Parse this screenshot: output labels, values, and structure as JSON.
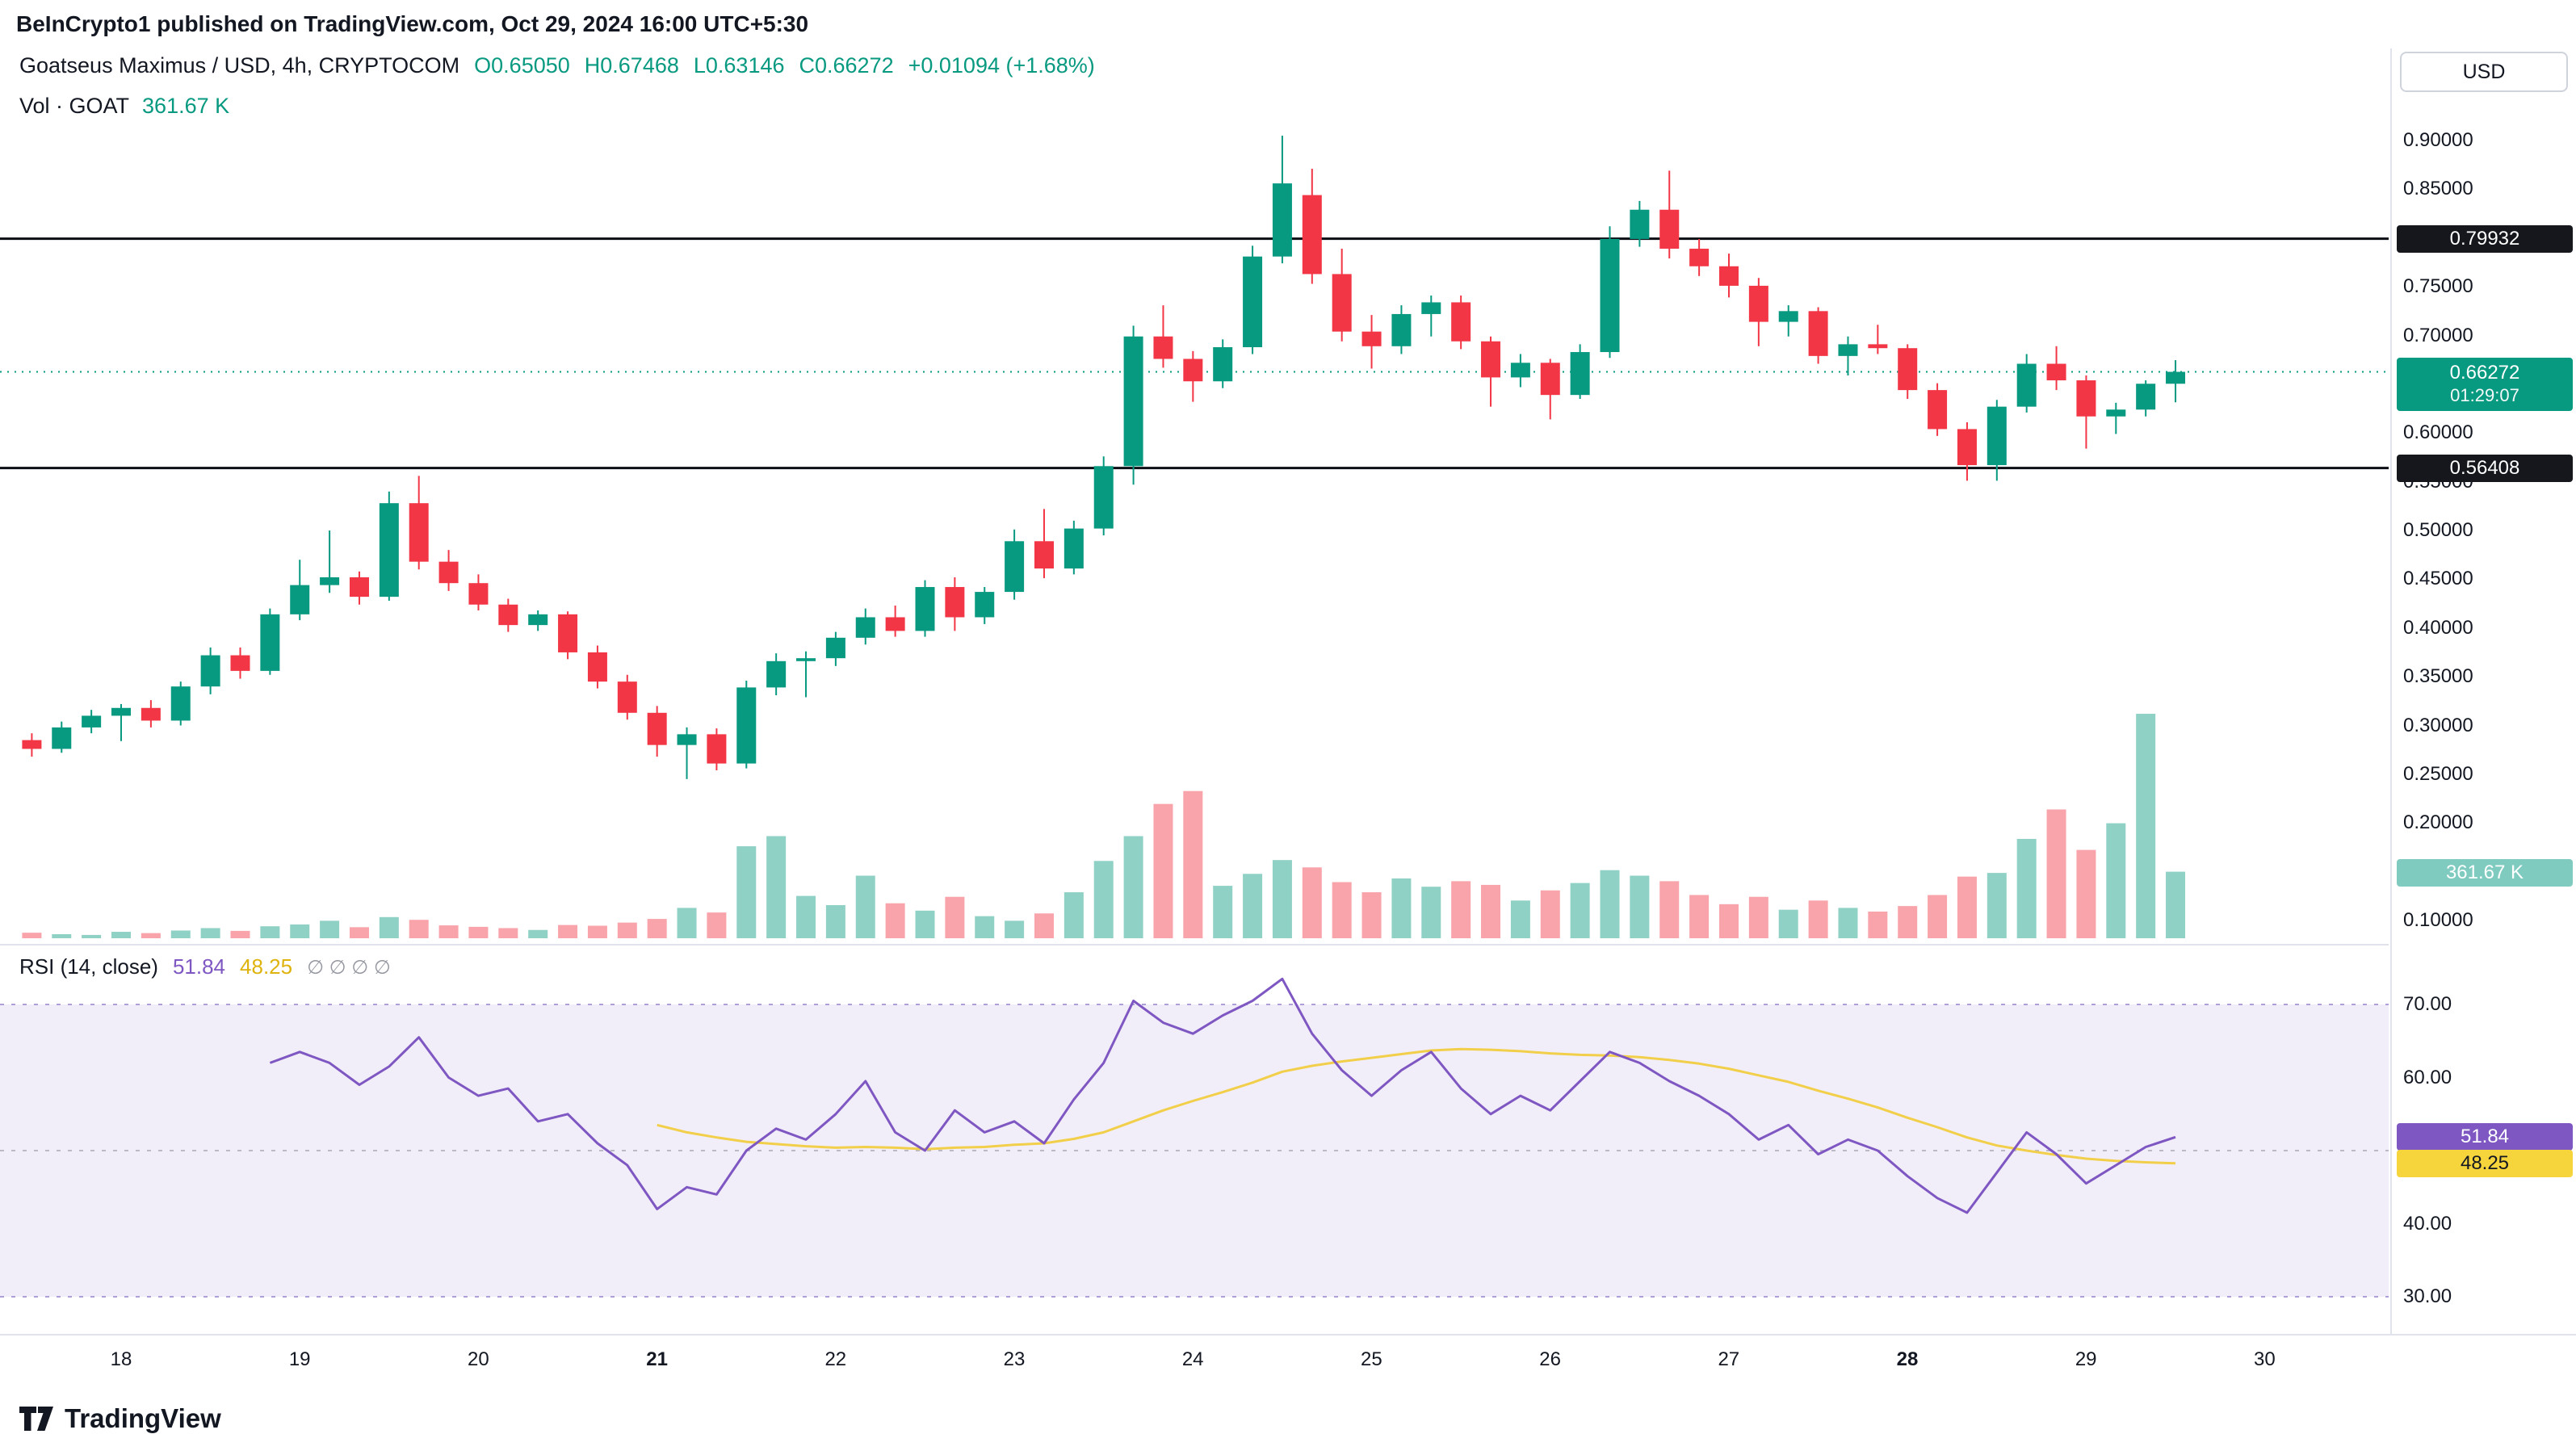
{
  "meta": {
    "publisher_line": "BeInCrypto1 published on TradingView.com, Oct 29, 2024 16:00 UTC+5:30"
  },
  "legend": {
    "symbol_line": "Goatseus Maximus / USD, 4h, CRYPTOCOM",
    "ohlc": {
      "open": "O0.65050",
      "high": "H0.67468",
      "low": "L0.63146",
      "close": "C0.66272",
      "change": "+0.01094 (+1.68%)"
    },
    "volume_label": "Vol · GOAT",
    "volume_value": "361.67 K"
  },
  "price_axis": {
    "currency": "USD",
    "labels": [
      {
        "text": "0.90000",
        "value": 0.9
      },
      {
        "text": "0.85000",
        "value": 0.85
      },
      {
        "text": "0.75000",
        "value": 0.75
      },
      {
        "text": "0.70000",
        "value": 0.7
      },
      {
        "text": "0.60000",
        "value": 0.6
      },
      {
        "text": "0.55000",
        "value": 0.55
      },
      {
        "text": "0.50000",
        "value": 0.5
      },
      {
        "text": "0.45000",
        "value": 0.45
      },
      {
        "text": "0.40000",
        "value": 0.4
      },
      {
        "text": "0.35000",
        "value": 0.35
      },
      {
        "text": "0.30000",
        "value": 0.3
      },
      {
        "text": "0.25000",
        "value": 0.25
      },
      {
        "text": "0.20000",
        "value": 0.2
      },
      {
        "text": "0.10000",
        "value": 0.1
      }
    ],
    "badges": {
      "resistance": {
        "text": "0.79932",
        "value": 0.79932
      },
      "support": {
        "text": "0.56408",
        "value": 0.56408
      },
      "last": {
        "price": "0.66272",
        "countdown": "01:29:07",
        "value": 0.66272
      },
      "volume": {
        "text": "361.67 K"
      }
    }
  },
  "rsi_panel": {
    "legend_label": "RSI (14, close)",
    "value": "51.84",
    "ma_value": "48.25",
    "placeholders": "∅ ∅ ∅ ∅",
    "axis_labels": [
      {
        "text": "70.00",
        "value": 70
      },
      {
        "text": "60.00",
        "value": 60
      },
      {
        "text": "40.00",
        "value": 40
      },
      {
        "text": "30.00",
        "value": 30
      }
    ],
    "badges": {
      "rsi": {
        "text": "51.84",
        "value": 51.84
      },
      "ma": {
        "text": "48.25",
        "value": 48.25
      }
    }
  },
  "time_axis": {
    "labels": [
      {
        "text": "18",
        "day": 18,
        "bold": false
      },
      {
        "text": "19",
        "day": 19,
        "bold": false
      },
      {
        "text": "20",
        "day": 20,
        "bold": false
      },
      {
        "text": "21",
        "day": 21,
        "bold": true
      },
      {
        "text": "22",
        "day": 22,
        "bold": false
      },
      {
        "text": "23",
        "day": 23,
        "bold": false
      },
      {
        "text": "24",
        "day": 24,
        "bold": false
      },
      {
        "text": "25",
        "day": 25,
        "bold": false
      },
      {
        "text": "26",
        "day": 26,
        "bold": false
      },
      {
        "text": "27",
        "day": 27,
        "bold": false
      },
      {
        "text": "28",
        "day": 28,
        "bold": true
      },
      {
        "text": "29",
        "day": 29,
        "bold": false
      },
      {
        "text": "30",
        "day": 30,
        "bold": false
      }
    ]
  },
  "footer": {
    "brand": "TradingView"
  },
  "colors": {
    "up": "#089981",
    "down": "#f23645",
    "volume_up": "rgba(8,153,129,0.45)",
    "volume_down": "rgba(242,54,69,0.45)",
    "level_line": "#0c0e15",
    "last_price_line": "#089981",
    "rsi_line": "#7e57c2",
    "rsi_ma_line": "#f2cf4a",
    "rsi_band_fill": "rgba(126,87,194,0.10)",
    "rsi_band_line": "#8f7ac9",
    "mid_line": "#787b86",
    "border": "#e0e3eb",
    "text": "#131722",
    "muted_text": "#9598a1"
  },
  "chart_data": {
    "type": "candlestick",
    "title": "Goatseus Maximus / USD, 4h, CRYPTOCOM",
    "symbol": "GOAT/USD",
    "interval": "4h",
    "exchange": "CRYPTOCOM",
    "x_axis_days_october_2024": [
      18,
      19,
      20,
      21,
      22,
      23,
      24,
      25,
      26,
      27,
      28,
      29,
      30
    ],
    "x_start_day": 17.5,
    "x_step_days": 0.166667,
    "price_axis_range": [
      0.1,
      0.92
    ],
    "levels": {
      "resistance": 0.79932,
      "support": 0.56408,
      "last_price": 0.66272,
      "countdown": "01:29:07"
    },
    "last_candle": {
      "open": 0.6505,
      "high": 0.67468,
      "low": 0.63146,
      "close": 0.66272,
      "change": 0.01094,
      "change_pct": 1.68
    },
    "volume_unit": "K",
    "last_volume_k": 361.67,
    "candles_ohlc": [
      [
        0.285,
        0.292,
        0.268,
        0.276
      ],
      [
        0.276,
        0.304,
        0.272,
        0.298
      ],
      [
        0.298,
        0.316,
        0.292,
        0.31
      ],
      [
        0.31,
        0.322,
        0.284,
        0.318
      ],
      [
        0.318,
        0.326,
        0.298,
        0.305
      ],
      [
        0.305,
        0.345,
        0.3,
        0.34
      ],
      [
        0.34,
        0.38,
        0.332,
        0.372
      ],
      [
        0.372,
        0.38,
        0.348,
        0.356
      ],
      [
        0.356,
        0.42,
        0.352,
        0.414
      ],
      [
        0.414,
        0.47,
        0.408,
        0.444
      ],
      [
        0.444,
        0.5,
        0.436,
        0.452
      ],
      [
        0.452,
        0.458,
        0.424,
        0.432
      ],
      [
        0.432,
        0.54,
        0.428,
        0.528
      ],
      [
        0.528,
        0.556,
        0.46,
        0.468
      ],
      [
        0.468,
        0.48,
        0.438,
        0.446
      ],
      [
        0.446,
        0.455,
        0.418,
        0.424
      ],
      [
        0.424,
        0.43,
        0.396,
        0.403
      ],
      [
        0.403,
        0.418,
        0.397,
        0.414
      ],
      [
        0.414,
        0.417,
        0.368,
        0.375
      ],
      [
        0.375,
        0.382,
        0.338,
        0.345
      ],
      [
        0.345,
        0.352,
        0.306,
        0.313
      ],
      [
        0.313,
        0.32,
        0.268,
        0.28
      ],
      [
        0.28,
        0.298,
        0.245,
        0.291
      ],
      [
        0.291,
        0.297,
        0.254,
        0.261
      ],
      [
        0.261,
        0.346,
        0.256,
        0.339
      ],
      [
        0.339,
        0.374,
        0.331,
        0.366
      ],
      [
        0.366,
        0.376,
        0.329,
        0.369
      ],
      [
        0.369,
        0.396,
        0.361,
        0.39
      ],
      [
        0.39,
        0.42,
        0.383,
        0.411
      ],
      [
        0.411,
        0.423,
        0.391,
        0.397
      ],
      [
        0.397,
        0.449,
        0.391,
        0.442
      ],
      [
        0.442,
        0.452,
        0.397,
        0.411
      ],
      [
        0.411,
        0.442,
        0.404,
        0.437
      ],
      [
        0.437,
        0.501,
        0.429,
        0.489
      ],
      [
        0.489,
        0.522,
        0.451,
        0.461
      ],
      [
        0.461,
        0.51,
        0.455,
        0.502
      ],
      [
        0.502,
        0.576,
        0.495,
        0.566
      ],
      [
        0.566,
        0.71,
        0.547,
        0.699
      ],
      [
        0.699,
        0.731,
        0.667,
        0.676
      ],
      [
        0.676,
        0.684,
        0.632,
        0.653
      ],
      [
        0.653,
        0.696,
        0.646,
        0.688
      ],
      [
        0.688,
        0.792,
        0.681,
        0.781
      ],
      [
        0.781,
        0.905,
        0.774,
        0.856
      ],
      [
        0.844,
        0.871,
        0.753,
        0.763
      ],
      [
        0.763,
        0.789,
        0.694,
        0.704
      ],
      [
        0.704,
        0.721,
        0.666,
        0.689
      ],
      [
        0.689,
        0.731,
        0.681,
        0.722
      ],
      [
        0.722,
        0.741,
        0.699,
        0.734
      ],
      [
        0.734,
        0.741,
        0.686,
        0.694
      ],
      [
        0.694,
        0.699,
        0.627,
        0.657
      ],
      [
        0.657,
        0.681,
        0.647,
        0.672
      ],
      [
        0.672,
        0.676,
        0.614,
        0.639
      ],
      [
        0.639,
        0.691,
        0.635,
        0.683
      ],
      [
        0.683,
        0.812,
        0.677,
        0.799
      ],
      [
        0.799,
        0.838,
        0.791,
        0.829
      ],
      [
        0.829,
        0.869,
        0.779,
        0.789
      ],
      [
        0.789,
        0.799,
        0.761,
        0.771
      ],
      [
        0.771,
        0.784,
        0.739,
        0.751
      ],
      [
        0.751,
        0.759,
        0.689,
        0.714
      ],
      [
        0.714,
        0.731,
        0.699,
        0.725
      ],
      [
        0.725,
        0.729,
        0.671,
        0.679
      ],
      [
        0.679,
        0.699,
        0.659,
        0.691
      ],
      [
        0.691,
        0.711,
        0.681,
        0.687
      ],
      [
        0.687,
        0.691,
        0.635,
        0.644
      ],
      [
        0.644,
        0.651,
        0.597,
        0.604
      ],
      [
        0.604,
        0.611,
        0.551,
        0.567
      ],
      [
        0.567,
        0.634,
        0.551,
        0.627
      ],
      [
        0.627,
        0.681,
        0.621,
        0.671
      ],
      [
        0.671,
        0.689,
        0.644,
        0.654
      ],
      [
        0.654,
        0.659,
        0.584,
        0.617
      ],
      [
        0.617,
        0.631,
        0.599,
        0.624
      ],
      [
        0.624,
        0.654,
        0.617,
        0.6505
      ],
      [
        0.6505,
        0.67468,
        0.63146,
        0.66272
      ]
    ],
    "volumes_k": [
      30,
      22,
      18,
      35,
      28,
      42,
      55,
      40,
      65,
      75,
      95,
      60,
      115,
      100,
      70,
      62,
      55,
      45,
      72,
      68,
      85,
      105,
      165,
      140,
      500,
      555,
      230,
      180,
      340,
      190,
      150,
      225,
      120,
      95,
      135,
      250,
      420,
      555,
      730,
      800,
      285,
      350,
      425,
      385,
      305,
      250,
      325,
      280,
      310,
      290,
      205,
      260,
      300,
      370,
      340,
      310,
      235,
      185,
      225,
      155,
      205,
      165,
      145,
      175,
      235,
      335,
      355,
      540,
      700,
      480,
      625,
      1220,
      361.67
    ],
    "rsi": {
      "period": 14,
      "source": "close",
      "last": 51.84,
      "ma_last": 48.25,
      "range_shown": [
        30,
        70
      ],
      "values": [
        null,
        null,
        null,
        null,
        null,
        null,
        null,
        null,
        62,
        63.5,
        62,
        59,
        61.5,
        65.5,
        60,
        57.5,
        58.5,
        54,
        55,
        51,
        48,
        42,
        45,
        44,
        50,
        53,
        51.5,
        55,
        59.5,
        52.5,
        50,
        55.5,
        52.5,
        54,
        51,
        57,
        62,
        70.5,
        67.5,
        66,
        68.5,
        70.5,
        73.5,
        66,
        61,
        57.5,
        61,
        63.5,
        58.5,
        55,
        57.5,
        55.5,
        59.5,
        63.5,
        62,
        59.5,
        57.5,
        55,
        51.5,
        53.5,
        49.5,
        51.5,
        50,
        46.5,
        43.5,
        41.5,
        47,
        52.5,
        49.5,
        45.5,
        48,
        50.5,
        51.84
      ],
      "ma_values": [
        null,
        null,
        null,
        null,
        null,
        null,
        null,
        null,
        null,
        null,
        null,
        null,
        null,
        null,
        null,
        null,
        null,
        null,
        null,
        null,
        null,
        53.5,
        52.5,
        51.8,
        51.2,
        50.9,
        50.6,
        50.4,
        50.5,
        50.4,
        50.2,
        50.4,
        50.5,
        50.8,
        51.0,
        51.6,
        52.5,
        54.0,
        55.5,
        56.8,
        58.0,
        59.3,
        60.8,
        61.6,
        62.2,
        62.7,
        63.2,
        63.7,
        63.9,
        63.8,
        63.6,
        63.3,
        63.1,
        63.0,
        62.8,
        62.4,
        61.9,
        61.2,
        60.3,
        59.4,
        58.2,
        57.1,
        55.9,
        54.5,
        53.2,
        51.8,
        50.7,
        50.0,
        49.4,
        48.9,
        48.6,
        48.4,
        48.25
      ]
    }
  }
}
